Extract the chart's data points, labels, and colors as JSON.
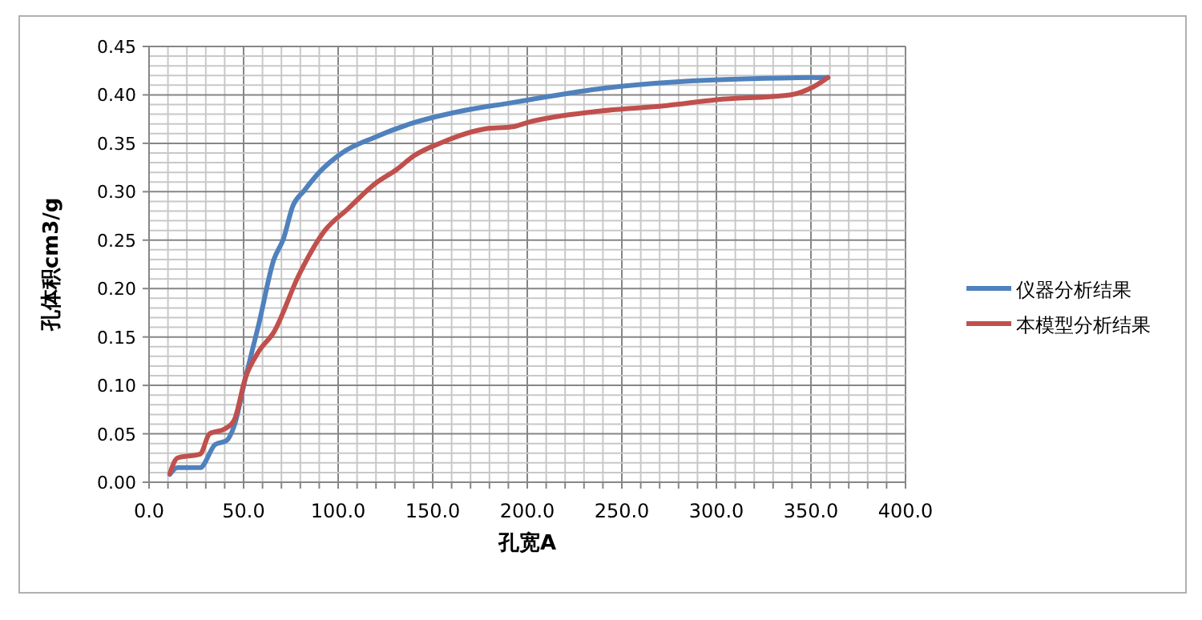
{
  "chart_data": {
    "type": "line",
    "xlabel": "孔宽A",
    "ylabel": "孔体积cm3/g",
    "grid": true,
    "legend": "right",
    "marker": "none",
    "line_style": "solid",
    "xlim": [
      0,
      400
    ],
    "ylim": [
      0,
      0.45
    ],
    "xticks": [
      {
        "value": 0,
        "label": "0.0"
      },
      {
        "value": 10,
        "label": null
      },
      {
        "value": 20,
        "label": null
      },
      {
        "value": 30,
        "label": null
      },
      {
        "value": 40,
        "label": null
      },
      {
        "value": 50,
        "label": "50.0"
      },
      {
        "value": 60,
        "label": null
      },
      {
        "value": 70,
        "label": null
      },
      {
        "value": 80,
        "label": null
      },
      {
        "value": 90,
        "label": null
      },
      {
        "value": 100,
        "label": "100.0"
      },
      {
        "value": 110,
        "label": null
      },
      {
        "value": 120,
        "label": null
      },
      {
        "value": 130,
        "label": null
      },
      {
        "value": 140,
        "label": null
      },
      {
        "value": 150,
        "label": "150.0"
      },
      {
        "value": 160,
        "label": null
      },
      {
        "value": 170,
        "label": null
      },
      {
        "value": 180,
        "label": null
      },
      {
        "value": 190,
        "label": null
      },
      {
        "value": 200,
        "label": "200.0"
      },
      {
        "value": 210,
        "label": null
      },
      {
        "value": 220,
        "label": null
      },
      {
        "value": 230,
        "label": null
      },
      {
        "value": 240,
        "label": null
      },
      {
        "value": 250,
        "label": "250.0"
      },
      {
        "value": 260,
        "label": null
      },
      {
        "value": 270,
        "label": null
      },
      {
        "value": 280,
        "label": null
      },
      {
        "value": 290,
        "label": null
      },
      {
        "value": 300,
        "label": "300.0"
      },
      {
        "value": 310,
        "label": null
      },
      {
        "value": 320,
        "label": null
      },
      {
        "value": 330,
        "label": null
      },
      {
        "value": 340,
        "label": null
      },
      {
        "value": 350,
        "label": "350.0"
      },
      {
        "value": 360,
        "label": null
      },
      {
        "value": 370,
        "label": null
      },
      {
        "value": 380,
        "label": null
      },
      {
        "value": 390,
        "label": null
      },
      {
        "value": 400,
        "label": "400.0"
      }
    ],
    "yticks": [
      {
        "value": 0,
        "label": "0.00"
      },
      {
        "value": 0.01,
        "label": null
      },
      {
        "value": 0.02,
        "label": null
      },
      {
        "value": 0.03,
        "label": null
      },
      {
        "value": 0.04,
        "label": null
      },
      {
        "value": 0.05,
        "label": "0.05"
      },
      {
        "value": 0.06,
        "label": null
      },
      {
        "value": 0.07,
        "label": null
      },
      {
        "value": 0.08,
        "label": null
      },
      {
        "value": 0.09,
        "label": null
      },
      {
        "value": 0.1,
        "label": "0.10"
      },
      {
        "value": 0.11,
        "label": null
      },
      {
        "value": 0.12,
        "label": null
      },
      {
        "value": 0.13,
        "label": null
      },
      {
        "value": 0.14,
        "label": null
      },
      {
        "value": 0.15,
        "label": "0.15"
      },
      {
        "value": 0.16,
        "label": null
      },
      {
        "value": 0.17,
        "label": null
      },
      {
        "value": 0.18,
        "label": null
      },
      {
        "value": 0.19,
        "label": null
      },
      {
        "value": 0.2,
        "label": "0.20"
      },
      {
        "value": 0.21,
        "label": null
      },
      {
        "value": 0.22,
        "label": null
      },
      {
        "value": 0.23,
        "label": null
      },
      {
        "value": 0.24,
        "label": null
      },
      {
        "value": 0.25,
        "label": "0.25"
      },
      {
        "value": 0.26,
        "label": null
      },
      {
        "value": 0.27,
        "label": null
      },
      {
        "value": 0.28,
        "label": null
      },
      {
        "value": 0.29,
        "label": null
      },
      {
        "value": 0.3,
        "label": "0.30"
      },
      {
        "value": 0.31,
        "label": null
      },
      {
        "value": 0.32,
        "label": null
      },
      {
        "value": 0.33,
        "label": null
      },
      {
        "value": 0.34,
        "label": null
      },
      {
        "value": 0.35,
        "label": "0.35"
      },
      {
        "value": 0.36,
        "label": null
      },
      {
        "value": 0.37,
        "label": null
      },
      {
        "value": 0.38,
        "label": null
      },
      {
        "value": 0.39,
        "label": null
      },
      {
        "value": 0.4,
        "label": "0.40"
      },
      {
        "value": 0.41,
        "label": null
      },
      {
        "value": 0.42,
        "label": null
      },
      {
        "value": 0.43,
        "label": null
      },
      {
        "value": 0.44,
        "label": null
      },
      {
        "value": 0.45,
        "label": "0.45"
      }
    ],
    "series": [
      {
        "name": "仪器分析结果",
        "color": "#4f81bd",
        "x": [
          11,
          15,
          27,
          35,
          41,
          45,
          51,
          58,
          66,
          71,
          76,
          82,
          90,
          102,
          119,
          138,
          167,
          192,
          201,
          237,
          294,
          359
        ],
        "values": [
          0.008,
          0.015,
          0.015,
          0.039,
          0.043,
          0.058,
          0.108,
          0.163,
          0.23,
          0.251,
          0.285,
          0.301,
          0.32,
          0.34,
          0.356,
          0.37,
          0.384,
          0.392,
          0.395,
          0.406,
          0.415,
          0.418
        ]
      },
      {
        "name": "本模型分析结果",
        "color": "#c0504d",
        "x": [
          11,
          15,
          27,
          32,
          40,
          45,
          51,
          58,
          66,
          79,
          93,
          105,
          120,
          131,
          140,
          155,
          178,
          192,
          201,
          237,
          274,
          300,
          339,
          351,
          359
        ],
        "values": [
          0.009,
          0.025,
          0.029,
          0.05,
          0.055,
          0.064,
          0.108,
          0.135,
          0.155,
          0.213,
          0.26,
          0.282,
          0.309,
          0.323,
          0.337,
          0.351,
          0.365,
          0.367,
          0.372,
          0.383,
          0.389,
          0.395,
          0.4,
          0.408,
          0.418
        ]
      }
    ]
  }
}
